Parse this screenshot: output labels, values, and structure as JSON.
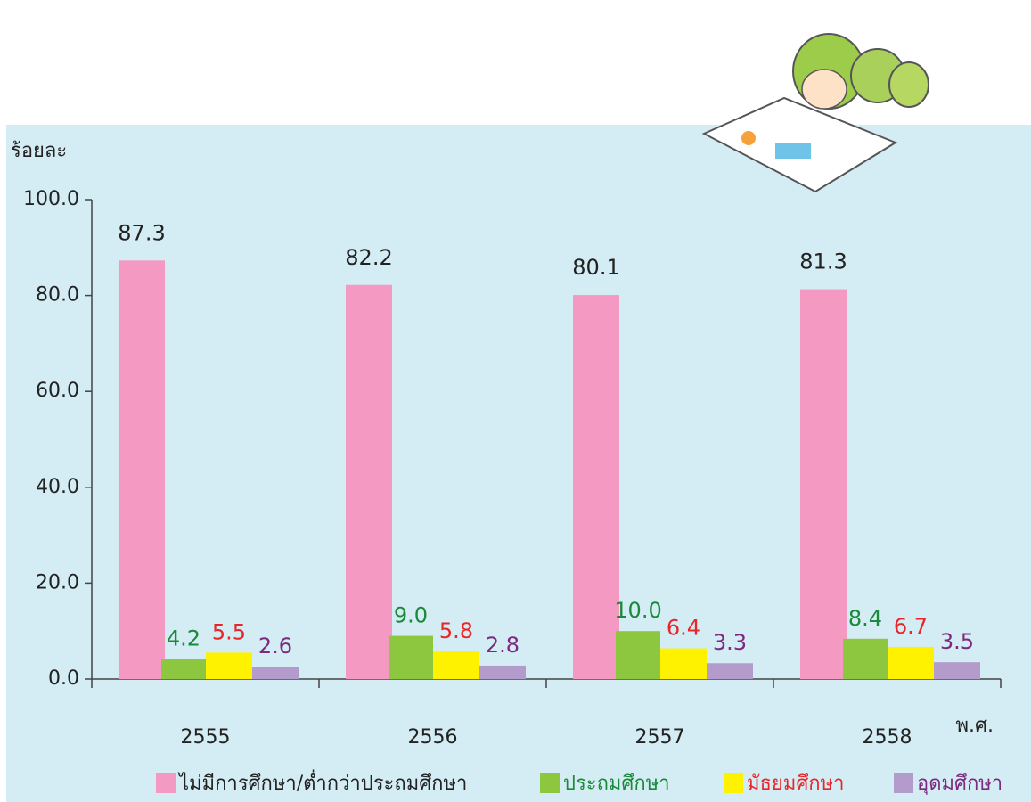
{
  "chart_data": {
    "type": "bar",
    "y_label": "ร้อยละ",
    "x_label": "พ.ศ.",
    "categories": [
      "2555",
      "2556",
      "2557",
      "2558"
    ],
    "series": [
      {
        "name": "ไม่มีการศึกษา/ต่ำกว่าประถมศึกษา",
        "color": "#f49ac2",
        "label_color": "#222222",
        "values": [
          87.3,
          82.2,
          80.1,
          81.3
        ],
        "value_labels": [
          "87.3",
          "82.2",
          "80.1",
          "81.3"
        ]
      },
      {
        "name": "ประถมศึกษา",
        "color": "#8dc63f",
        "label_color": "#1a8a3a",
        "values": [
          4.2,
          9.0,
          10.0,
          8.4
        ],
        "value_labels": [
          "4.2",
          "9.0",
          "10.0",
          "8.4"
        ]
      },
      {
        "name": "มัธยมศึกษา",
        "color": "#fff200",
        "label_color": "#e8262a",
        "values": [
          5.5,
          5.8,
          6.4,
          6.7
        ],
        "value_labels": [
          "5.5",
          "5.8",
          "6.4",
          "6.7"
        ]
      },
      {
        "name": "อุดมศึกษา",
        "color": "#b39ccb",
        "label_color": "#7b2a7f",
        "values": [
          2.6,
          2.8,
          3.3,
          3.5
        ],
        "value_labels": [
          "2.6",
          "2.8",
          "3.3",
          "3.5"
        ]
      }
    ],
    "ylim": [
      0,
      100
    ],
    "yticks": [
      {
        "value": 0,
        "label": "0.0"
      },
      {
        "value": 20,
        "label": "20.0"
      },
      {
        "value": 40,
        "label": "40.0"
      },
      {
        "value": 60,
        "label": "60.0"
      },
      {
        "value": 80,
        "label": "80.0"
      },
      {
        "value": 100,
        "label": "100.0"
      }
    ],
    "background": "#d4ecf3"
  }
}
